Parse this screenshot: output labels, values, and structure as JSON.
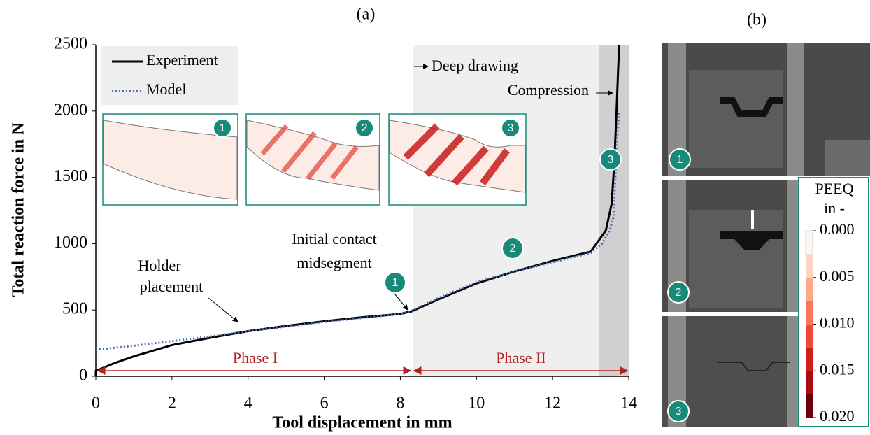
{
  "chart_data": {
    "type": "line",
    "panel_label": "(a)",
    "x_label": "Tool displacement in mm",
    "y_label": "Total reaction force in N",
    "xlim": [
      0,
      14
    ],
    "xticks": [
      0,
      2,
      4,
      6,
      8,
      10,
      12,
      14
    ],
    "ylim": [
      0,
      2500
    ],
    "yticks": [
      0,
      500,
      1000,
      1500,
      2000,
      2500
    ],
    "series": [
      {
        "name": "Experiment",
        "color": "#000000",
        "style": "solid",
        "x": [
          0,
          0,
          0.5,
          1,
          2,
          3,
          4,
          5,
          6,
          7,
          8,
          8.3,
          9,
          10,
          11,
          12,
          13,
          13.1,
          13.4,
          13.55,
          13.62,
          13.68,
          13.72,
          13.75
        ],
        "values": [
          0,
          40,
          100,
          150,
          235,
          290,
          340,
          380,
          415,
          445,
          470,
          490,
          580,
          700,
          790,
          870,
          940,
          980,
          1100,
          1300,
          1600,
          2000,
          2300,
          2500
        ]
      },
      {
        "name": "Model",
        "color": "#4a6fb5",
        "style": "dotted",
        "x": [
          0,
          1,
          2,
          3,
          4,
          5,
          6,
          7,
          8,
          8.3,
          9,
          10,
          11,
          12,
          13,
          13.3,
          13.5,
          13.6,
          13.65,
          13.7,
          13.75
        ],
        "values": [
          200,
          230,
          265,
          300,
          340,
          375,
          410,
          440,
          470,
          495,
          590,
          710,
          790,
          860,
          930,
          1000,
          1100,
          1200,
          1500,
          1800,
          2000
        ]
      }
    ],
    "annotations": {
      "deep_drawing": "Deep drawing",
      "compression": "Compression",
      "initial_contact": [
        "Initial contact",
        "midsegment"
      ],
      "holder_placement": [
        "Holder",
        "placement"
      ],
      "phase_1": "Phase I",
      "phase_2": "Phase II"
    },
    "step_labels": [
      "1",
      "2",
      "3"
    ]
  },
  "panel_b": {
    "panel_label": "(b)",
    "colorbar_title": [
      "PEEQ",
      "in -"
    ],
    "colorbar_lim": [
      0,
      0.02
    ],
    "colorbar_ticks": [
      {
        "value": 0,
        "label": "0.000"
      },
      {
        "value": 0.005,
        "label": "0.005"
      },
      {
        "value": 0.01,
        "label": "0.010"
      },
      {
        "value": 0.015,
        "label": "0.015"
      },
      {
        "value": 0.02,
        "label": "0.020"
      }
    ]
  }
}
